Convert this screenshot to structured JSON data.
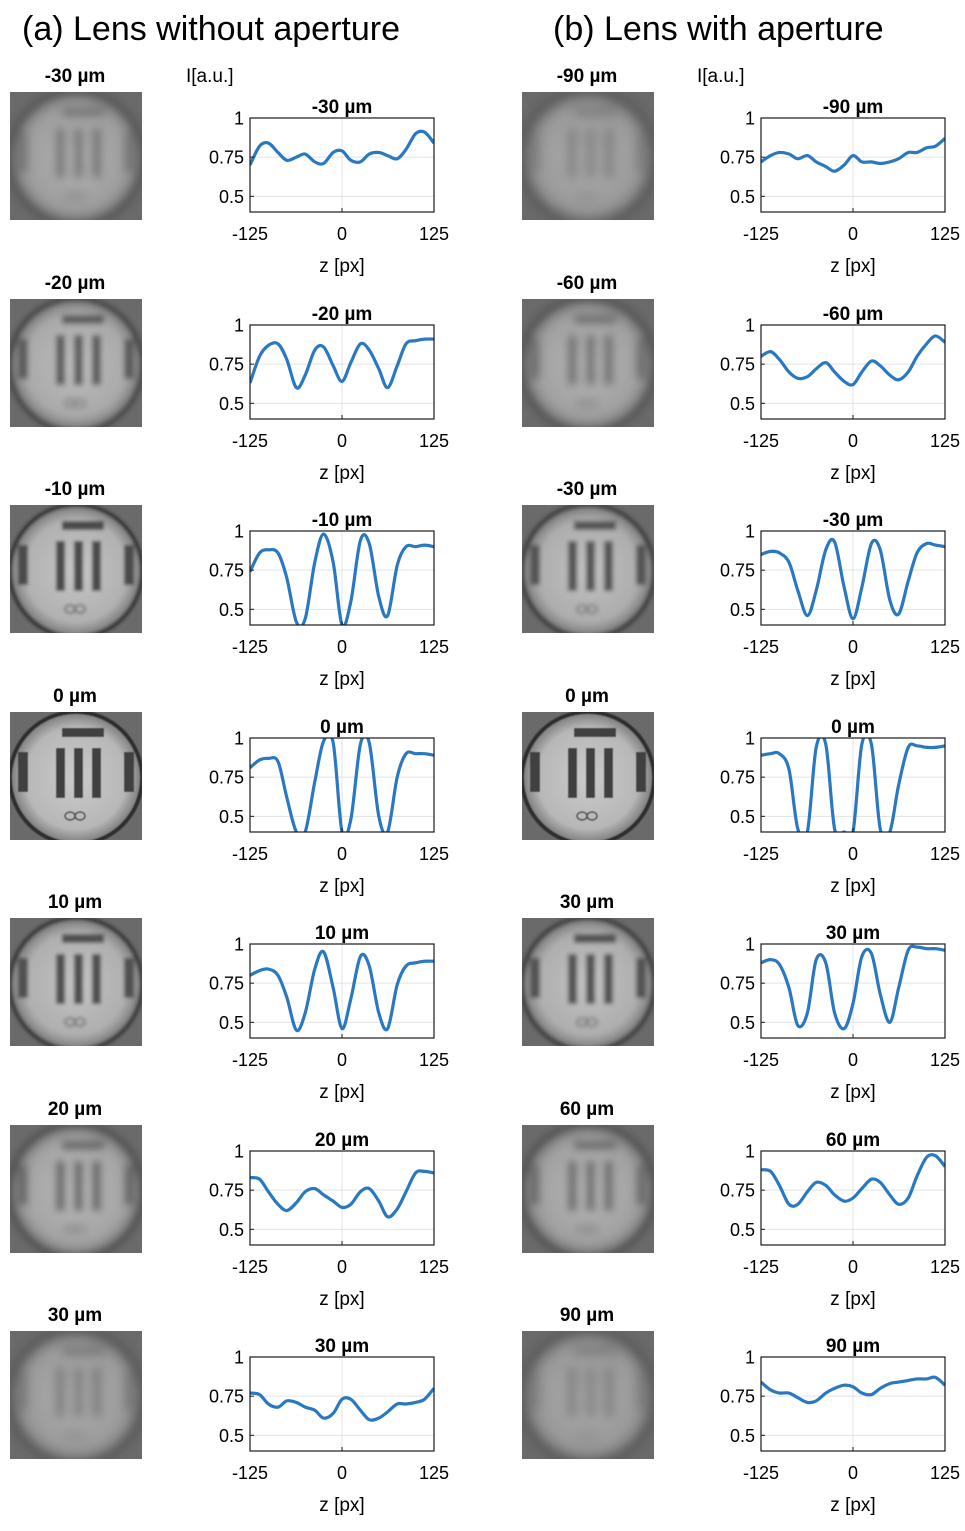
{
  "panels": [
    {
      "title": "(a) Lens without aperture"
    },
    {
      "title": "(b) Lens with aperture"
    }
  ],
  "chart_data": [
    {
      "panel": "(a) Lens without aperture",
      "type": "line",
      "ylabel": "I[a.u.]",
      "xlabel": "z [px]",
      "xlim": [
        -125,
        125
      ],
      "ylim": [
        0.4,
        1
      ],
      "xticks": [
        "-125",
        "0",
        "125"
      ],
      "yticks": [
        "0.5",
        "0.75",
        "1"
      ],
      "grid": true,
      "color": "#2b78c2",
      "plots": [
        {
          "label": "-30 µm",
          "blur": 0.78,
          "x": [
            -125,
            -112,
            -100,
            -87,
            -75,
            -62,
            -50,
            -37,
            -25,
            -12,
            0,
            12,
            25,
            37,
            50,
            62,
            75,
            87,
            100,
            112,
            125
          ],
          "y": [
            0.7,
            0.82,
            0.84,
            0.78,
            0.73,
            0.75,
            0.77,
            0.72,
            0.71,
            0.78,
            0.79,
            0.73,
            0.72,
            0.77,
            0.78,
            0.76,
            0.74,
            0.8,
            0.9,
            0.91,
            0.84
          ]
        },
        {
          "label": "-20 µm",
          "blur": 0.45,
          "x": [
            -125,
            -112,
            -100,
            -87,
            -75,
            -62,
            -50,
            -37,
            -25,
            -12,
            0,
            12,
            25,
            37,
            50,
            62,
            75,
            87,
            100,
            112,
            125
          ],
          "y": [
            0.63,
            0.8,
            0.87,
            0.88,
            0.78,
            0.6,
            0.68,
            0.84,
            0.86,
            0.74,
            0.64,
            0.76,
            0.88,
            0.84,
            0.72,
            0.6,
            0.74,
            0.88,
            0.9,
            0.91,
            0.91
          ]
        },
        {
          "label": "-10 µm",
          "blur": 0.22,
          "x": [
            -125,
            -112,
            -100,
            -87,
            -75,
            -62,
            -50,
            -37,
            -25,
            -12,
            0,
            12,
            25,
            37,
            50,
            62,
            75,
            87,
            100,
            112,
            125
          ],
          "y": [
            0.74,
            0.86,
            0.88,
            0.86,
            0.7,
            0.42,
            0.44,
            0.8,
            0.98,
            0.8,
            0.4,
            0.55,
            0.94,
            0.92,
            0.58,
            0.46,
            0.78,
            0.9,
            0.9,
            0.91,
            0.9
          ]
        },
        {
          "label": "0 µm",
          "blur": 0.05,
          "x": [
            -125,
            -112,
            -100,
            -87,
            -75,
            -62,
            -50,
            -37,
            -25,
            -12,
            0,
            12,
            25,
            37,
            50,
            62,
            75,
            87,
            100,
            112,
            125
          ],
          "y": [
            0.81,
            0.86,
            0.87,
            0.85,
            0.62,
            0.4,
            0.4,
            0.72,
            0.98,
            0.97,
            0.4,
            0.48,
            0.96,
            0.97,
            0.5,
            0.4,
            0.75,
            0.9,
            0.9,
            0.9,
            0.89
          ]
        },
        {
          "label": "10 µm",
          "blur": 0.3,
          "x": [
            -125,
            -112,
            -100,
            -87,
            -75,
            -62,
            -50,
            -37,
            -25,
            -12,
            0,
            12,
            25,
            37,
            50,
            62,
            75,
            87,
            100,
            112,
            125
          ],
          "y": [
            0.8,
            0.83,
            0.84,
            0.8,
            0.66,
            0.45,
            0.56,
            0.84,
            0.95,
            0.72,
            0.46,
            0.65,
            0.92,
            0.86,
            0.56,
            0.46,
            0.74,
            0.86,
            0.88,
            0.89,
            0.89
          ]
        },
        {
          "label": "20 µm",
          "blur": 0.6,
          "x": [
            -125,
            -112,
            -100,
            -87,
            -75,
            -62,
            -50,
            -37,
            -25,
            -12,
            0,
            12,
            25,
            37,
            50,
            62,
            75,
            87,
            100,
            112,
            125
          ],
          "y": [
            0.83,
            0.82,
            0.74,
            0.66,
            0.62,
            0.67,
            0.74,
            0.76,
            0.72,
            0.68,
            0.64,
            0.66,
            0.74,
            0.76,
            0.68,
            0.58,
            0.63,
            0.74,
            0.86,
            0.87,
            0.86
          ]
        },
        {
          "label": "30 µm",
          "blur": 0.85,
          "x": [
            -125,
            -112,
            -100,
            -87,
            -75,
            -62,
            -50,
            -37,
            -25,
            -12,
            0,
            12,
            25,
            37,
            50,
            62,
            75,
            87,
            100,
            112,
            125
          ],
          "y": [
            0.77,
            0.76,
            0.7,
            0.68,
            0.72,
            0.71,
            0.68,
            0.66,
            0.61,
            0.64,
            0.73,
            0.73,
            0.66,
            0.6,
            0.61,
            0.65,
            0.7,
            0.7,
            0.71,
            0.73,
            0.8
          ]
        }
      ]
    },
    {
      "panel": "(b) Lens with aperture",
      "type": "line",
      "ylabel": "I[a.u.]",
      "xlabel": "z [px]",
      "xlim": [
        -125,
        125
      ],
      "ylim": [
        0.4,
        1
      ],
      "xticks": [
        "-125",
        "0",
        "125"
      ],
      "yticks": [
        "0.5",
        "0.75",
        "1"
      ],
      "grid": true,
      "color": "#2b78c2",
      "plots": [
        {
          "label": "-90 µm",
          "blur": 0.9,
          "x": [
            -125,
            -112,
            -100,
            -87,
            -75,
            -62,
            -50,
            -37,
            -25,
            -12,
            0,
            12,
            25,
            37,
            50,
            62,
            75,
            87,
            100,
            112,
            125
          ],
          "y": [
            0.72,
            0.76,
            0.78,
            0.77,
            0.74,
            0.76,
            0.72,
            0.69,
            0.66,
            0.7,
            0.76,
            0.72,
            0.72,
            0.71,
            0.72,
            0.74,
            0.78,
            0.78,
            0.81,
            0.82,
            0.87
          ]
        },
        {
          "label": "-60 µm",
          "blur": 0.7,
          "x": [
            -125,
            -112,
            -100,
            -87,
            -75,
            -62,
            -50,
            -37,
            -25,
            -12,
            0,
            12,
            25,
            37,
            50,
            62,
            75,
            87,
            100,
            112,
            125
          ],
          "y": [
            0.8,
            0.83,
            0.78,
            0.7,
            0.66,
            0.67,
            0.72,
            0.76,
            0.7,
            0.64,
            0.62,
            0.7,
            0.77,
            0.74,
            0.68,
            0.65,
            0.7,
            0.8,
            0.88,
            0.93,
            0.89
          ]
        },
        {
          "label": "-30 µm",
          "blur": 0.35,
          "x": [
            -125,
            -112,
            -100,
            -87,
            -75,
            -62,
            -50,
            -37,
            -25,
            -12,
            0,
            12,
            25,
            37,
            50,
            62,
            75,
            87,
            100,
            112,
            125
          ],
          "y": [
            0.85,
            0.87,
            0.86,
            0.8,
            0.62,
            0.46,
            0.62,
            0.88,
            0.93,
            0.64,
            0.44,
            0.64,
            0.92,
            0.88,
            0.56,
            0.47,
            0.68,
            0.86,
            0.92,
            0.91,
            0.9
          ]
        },
        {
          "label": "0 µm",
          "blur": 0.05,
          "x": [
            -125,
            -112,
            -100,
            -87,
            -75,
            -62,
            -50,
            -37,
            -25,
            -12,
            0,
            12,
            25,
            37,
            50,
            62,
            75,
            87,
            100,
            112,
            125
          ],
          "y": [
            0.89,
            0.9,
            0.9,
            0.8,
            0.42,
            0.4,
            0.94,
            0.96,
            0.42,
            0.4,
            0.4,
            0.96,
            0.96,
            0.42,
            0.4,
            0.7,
            0.94,
            0.95,
            0.94,
            0.94,
            0.95
          ]
        },
        {
          "label": "30 µm",
          "blur": 0.32,
          "x": [
            -125,
            -112,
            -100,
            -87,
            -75,
            -62,
            -50,
            -37,
            -25,
            -12,
            0,
            12,
            25,
            37,
            50,
            62,
            75,
            87,
            100,
            112,
            125
          ],
          "y": [
            0.88,
            0.9,
            0.87,
            0.72,
            0.48,
            0.56,
            0.9,
            0.88,
            0.56,
            0.46,
            0.62,
            0.92,
            0.94,
            0.68,
            0.5,
            0.72,
            0.96,
            0.98,
            0.97,
            0.97,
            0.96
          ]
        },
        {
          "label": "60 µm",
          "blur": 0.68,
          "x": [
            -125,
            -112,
            -100,
            -87,
            -75,
            -62,
            -50,
            -37,
            -25,
            -12,
            0,
            12,
            25,
            37,
            50,
            62,
            75,
            87,
            100,
            112,
            125
          ],
          "y": [
            0.88,
            0.87,
            0.78,
            0.66,
            0.66,
            0.74,
            0.8,
            0.78,
            0.72,
            0.68,
            0.7,
            0.76,
            0.82,
            0.8,
            0.72,
            0.66,
            0.7,
            0.84,
            0.96,
            0.97,
            0.9
          ]
        },
        {
          "label": "90 µm",
          "blur": 0.92,
          "x": [
            -125,
            -112,
            -100,
            -87,
            -75,
            -62,
            -50,
            -37,
            -25,
            -12,
            0,
            12,
            25,
            37,
            50,
            62,
            75,
            87,
            100,
            112,
            125
          ],
          "y": [
            0.84,
            0.79,
            0.77,
            0.77,
            0.74,
            0.71,
            0.72,
            0.77,
            0.8,
            0.82,
            0.81,
            0.77,
            0.76,
            0.8,
            0.83,
            0.84,
            0.85,
            0.86,
            0.86,
            0.87,
            0.82
          ]
        }
      ]
    }
  ]
}
